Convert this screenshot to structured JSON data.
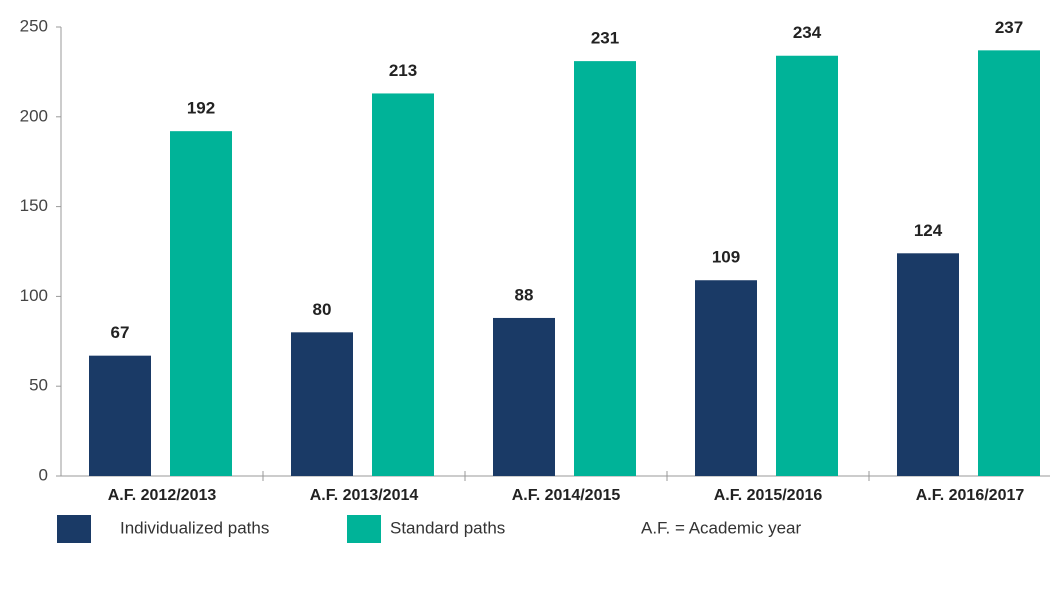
{
  "chart_data": {
    "type": "bar",
    "categories": [
      "A.F. 2012/2013",
      "A.F. 2013/2014",
      "A.F. 2014/2015",
      "A.F. 2015/2016",
      "A.F. 2016/2017"
    ],
    "series": [
      {
        "name": "Individualized paths",
        "color": "#1a3a66",
        "values": [
          67,
          80,
          88,
          109,
          124
        ]
      },
      {
        "name": "Standard paths",
        "color": "#00b398",
        "values": [
          192,
          213,
          231,
          234,
          237
        ]
      }
    ],
    "ylim": [
      0,
      250
    ],
    "yticks": [
      0,
      50,
      100,
      150,
      200,
      250
    ],
    "grid": false,
    "note": "A.F. = Academic year"
  }
}
